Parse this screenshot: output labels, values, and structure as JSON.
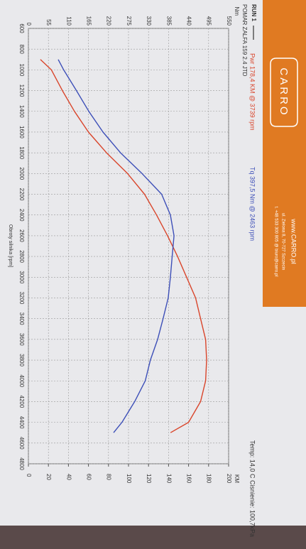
{
  "brand": {
    "logo": "CARRO",
    "url": "www.CARRO.pl",
    "address": "ul. Zielona 8, 70-727 Szczecin",
    "contact": "t. +48 533 300 805  @ biuro@carro.pl"
  },
  "chart_data": {
    "type": "line",
    "title": "RUN 1",
    "subtitle": "POMAR ZALFA 159 2.4 JTD",
    "annotations": [
      "Pwr 178,4 KM @ 3739 rpm",
      "Tq 397,5 Nm @ 2463 rpm",
      "Temp: 14,0 C  Cisnienie: 100,7kPa"
    ],
    "x_label": "Obroty silnika [rpm]",
    "y_label": "Nm",
    "y2_label": "KM",
    "x": [
      900,
      1000,
      1200,
      1400,
      1600,
      1800,
      2000,
      2200,
      2400,
      2600,
      2800,
      3000,
      3200,
      3400,
      3600,
      3800,
      4000,
      4200,
      4400,
      4500
    ],
    "series": [
      {
        "name": "Pwr",
        "color": "#d9452b",
        "axis": "y2",
        "values": [
          12,
          23,
          34,
          46,
          60,
          78,
          99,
          116,
          128,
          139,
          149,
          158,
          167,
          172,
          177,
          178,
          177,
          172,
          160,
          142
        ]
      },
      {
        "name": "Tq",
        "color": "#3d4fb8",
        "values": [
          82,
          97,
          132,
          166,
          205,
          253,
          312,
          366,
          390,
          400,
          395,
          390,
          384,
          370,
          355,
          335,
          321,
          292,
          257,
          234
        ]
      }
    ],
    "xlim": [
      600,
      4800
    ],
    "xticks": [
      600,
      800,
      1000,
      1200,
      1400,
      1600,
      1800,
      2000,
      2200,
      2400,
      2600,
      2800,
      3000,
      3200,
      3400,
      3600,
      3800,
      4000,
      4200,
      4400,
      4600,
      4800
    ],
    "ylim": [
      0,
      550
    ],
    "yticks": [
      0,
      55,
      110,
      165,
      220,
      275,
      330,
      385,
      440,
      495,
      550
    ],
    "y2lim": [
      0,
      200
    ],
    "y2ticks": [
      0,
      20,
      40,
      60,
      80,
      100,
      120,
      140,
      160,
      180,
      200
    ],
    "grid": true
  }
}
